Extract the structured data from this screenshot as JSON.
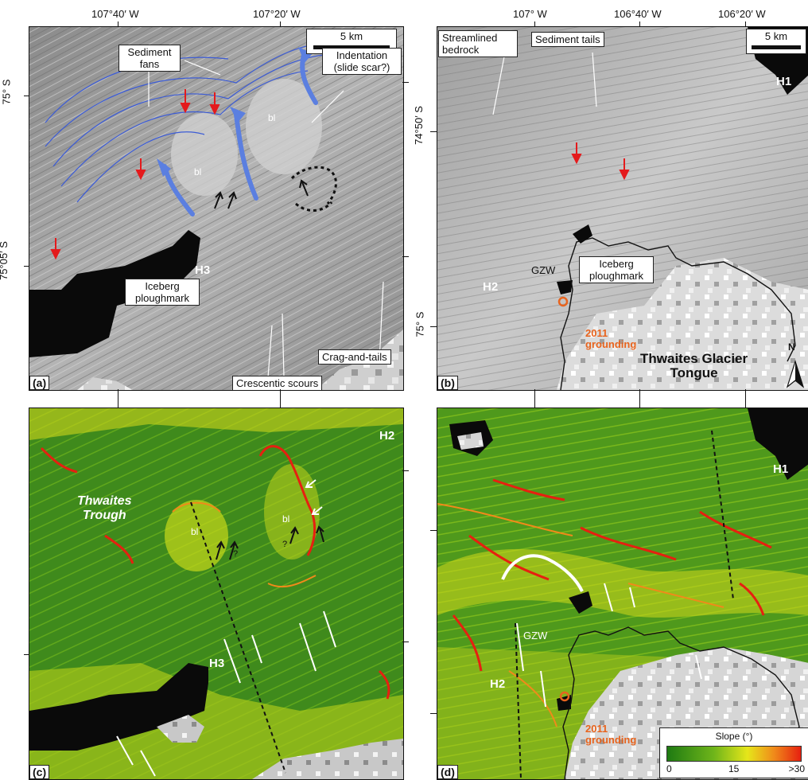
{
  "axes": {
    "top_left": [
      "107°40′ W",
      "107°20′ W"
    ],
    "top_right": [
      "107° W",
      "106°40′ W",
      "106°20′ W"
    ],
    "left_a": [
      "75° S",
      "75°05′ S"
    ],
    "left_b": [
      "74°50′ S",
      "75° S"
    ]
  },
  "panel_a": {
    "tag": "(a)",
    "scale": "5 km",
    "labels": {
      "sediment_fans": "Sediment fans",
      "indentation": "Indentation (slide scar?)",
      "iceberg": "Iceberg ploughmark",
      "crescentic": "Crescentic scours",
      "crag": "Crag-and-tails",
      "h3": "H3",
      "bl1": "bl",
      "bl2": "bl"
    }
  },
  "panel_b": {
    "tag": "(b)",
    "scale": "5 km",
    "labels": {
      "streamlined": "Streamlined bedrock",
      "sediment_tails": "Sediment tails",
      "iceberg": "Iceberg ploughmark",
      "gzw": "GZW",
      "h1": "H1",
      "h2": "H2",
      "grounding_year": "2011",
      "grounding_word": "grounding",
      "tongue_1": "Thwaites Glacier",
      "tongue_2": "Tongue",
      "north": "N"
    }
  },
  "panel_c": {
    "tag": "(c)",
    "labels": {
      "trough_1": "Thwaites",
      "trough_2": "Trough",
      "h2": "H2",
      "h3": "H3",
      "bl1": "bl",
      "bl2": "bl",
      "q1": "?",
      "q2": "?"
    }
  },
  "panel_d": {
    "tag": "(d)",
    "labels": {
      "gzw": "GZW",
      "h1": "H1",
      "h2": "H2",
      "grounding_year": "2011",
      "grounding_word": "grounding"
    },
    "legend": {
      "title": "Slope (°)",
      "min": "0",
      "mid": "15",
      "max": ">30",
      "colors": [
        "#1e7a12",
        "#6fb51a",
        "#e6e61a",
        "#f08a1a",
        "#e62010"
      ]
    }
  },
  "colors": {
    "accent_red": "#e41a1c",
    "accent_orange": "#e8641e",
    "blue_lines": "#3b5bd6"
  }
}
